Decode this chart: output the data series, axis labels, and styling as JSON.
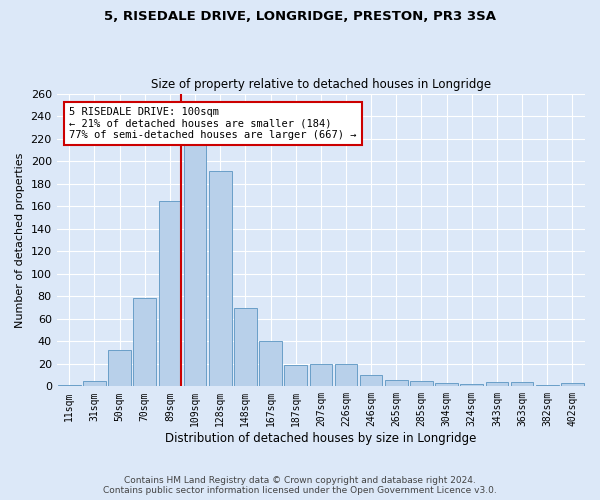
{
  "title": "5, RISEDALE DRIVE, LONGRIDGE, PRESTON, PR3 3SA",
  "subtitle": "Size of property relative to detached houses in Longridge",
  "xlabel": "Distribution of detached houses by size in Longridge",
  "ylabel": "Number of detached properties",
  "categories": [
    "11sqm",
    "31sqm",
    "50sqm",
    "70sqm",
    "89sqm",
    "109sqm",
    "128sqm",
    "148sqm",
    "167sqm",
    "187sqm",
    "207sqm",
    "226sqm",
    "246sqm",
    "265sqm",
    "285sqm",
    "304sqm",
    "324sqm",
    "343sqm",
    "363sqm",
    "382sqm",
    "402sqm"
  ],
  "values": [
    1,
    5,
    32,
    78,
    165,
    217,
    191,
    70,
    40,
    19,
    20,
    20,
    10,
    6,
    5,
    3,
    2,
    4,
    4,
    1,
    3
  ],
  "bar_color": "#b8d0ea",
  "bar_edge_color": "#6a9fc8",
  "red_line_index": 4,
  "annotation_text": "5 RISEDALE DRIVE: 100sqm\n← 21% of detached houses are smaller (184)\n77% of semi-detached houses are larger (667) →",
  "annotation_box_color": "white",
  "annotation_box_edge_color": "#cc0000",
  "red_line_color": "#cc0000",
  "background_color": "#dce8f8",
  "plot_background_color": "#dce8f8",
  "grid_color": "white",
  "ylim": [
    0,
    260
  ],
  "yticks": [
    0,
    20,
    40,
    60,
    80,
    100,
    120,
    140,
    160,
    180,
    200,
    220,
    240,
    260
  ],
  "footer_line1": "Contains HM Land Registry data © Crown copyright and database right 2024.",
  "footer_line2": "Contains public sector information licensed under the Open Government Licence v3.0."
}
